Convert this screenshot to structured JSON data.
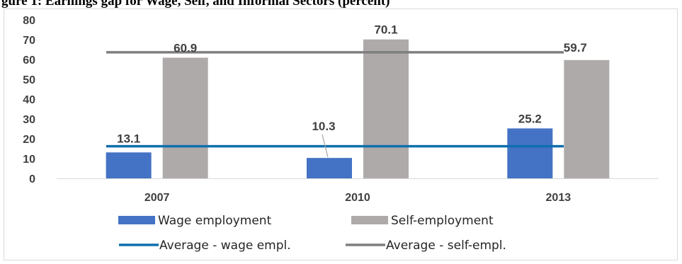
{
  "caption": "gure 1: Earnings gap for Wage, Self, and Informal Sectors (percent)",
  "chart_data": {
    "type": "bar",
    "categories": [
      "2007",
      "2010",
      "2013"
    ],
    "series": [
      {
        "name": "Wage employment",
        "values": [
          13.1,
          10.3,
          25.2
        ],
        "color": "#4472c4"
      },
      {
        "name": "Self-employment",
        "values": [
          60.9,
          70.1,
          59.7
        ],
        "color": "#aeaaaa"
      }
    ],
    "reference_lines": [
      {
        "name": "Average - wage empl.",
        "value": 16.2,
        "color": "#0f6fae"
      },
      {
        "name": "Average - self-empl.",
        "value": 63.6,
        "color": "#7f7f7f"
      }
    ],
    "ylim": [
      0,
      80
    ],
    "yticks": [
      0,
      10,
      20,
      30,
      40,
      50,
      60,
      70,
      80
    ],
    "value_labels": [
      "13.1",
      "60.9",
      "10.3",
      "70.1",
      "25.2",
      "59.7"
    ],
    "grid": false,
    "legend_position": "bottom"
  }
}
